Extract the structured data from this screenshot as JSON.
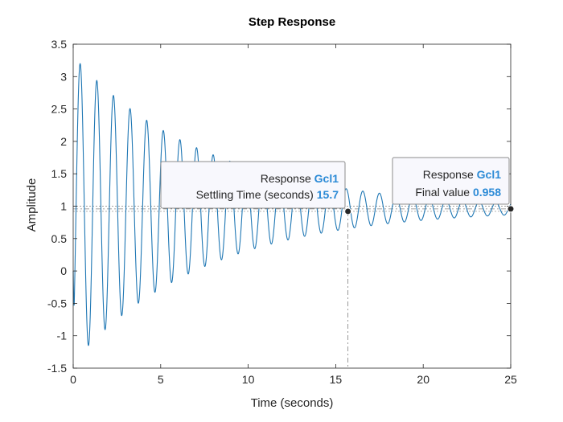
{
  "chart_data": {
    "type": "line",
    "title": "Step Response",
    "xlabel": "Time (seconds)",
    "ylabel": "Amplitude",
    "xlim": [
      0,
      25
    ],
    "ylim": [
      -1.5,
      3.5
    ],
    "x_ticks": [
      "0",
      "5",
      "10",
      "15",
      "20",
      "25"
    ],
    "y_ticks": [
      "-1.5",
      "-1",
      "-0.5",
      "0",
      "0.5",
      "1",
      "1.5",
      "2",
      "2.5",
      "3",
      "3.5"
    ],
    "grid": false,
    "series": [
      {
        "name": "Gcl1",
        "color": "#1f77b4",
        "final_value": 0.958,
        "peak_value": 3.2,
        "peak_time": 0.4,
        "oscillation_period": 0.95
      }
    ],
    "settling_band": [
      0.92,
      1.0
    ],
    "annotations": [
      {
        "id": "settling",
        "heading": "Response",
        "system": "Gcl1",
        "label": "Settling Time (seconds)",
        "value": "15.7",
        "x": 15.7,
        "y": 0.92
      },
      {
        "id": "final",
        "heading": "Response",
        "system": "Gcl1",
        "label": "Final value",
        "value": "0.958",
        "x": 25,
        "y": 0.958
      }
    ],
    "colors": {
      "line": "#1f77b4",
      "tip_value": "#2b8ad6",
      "axis": "#262626",
      "reference": "#808080"
    }
  }
}
